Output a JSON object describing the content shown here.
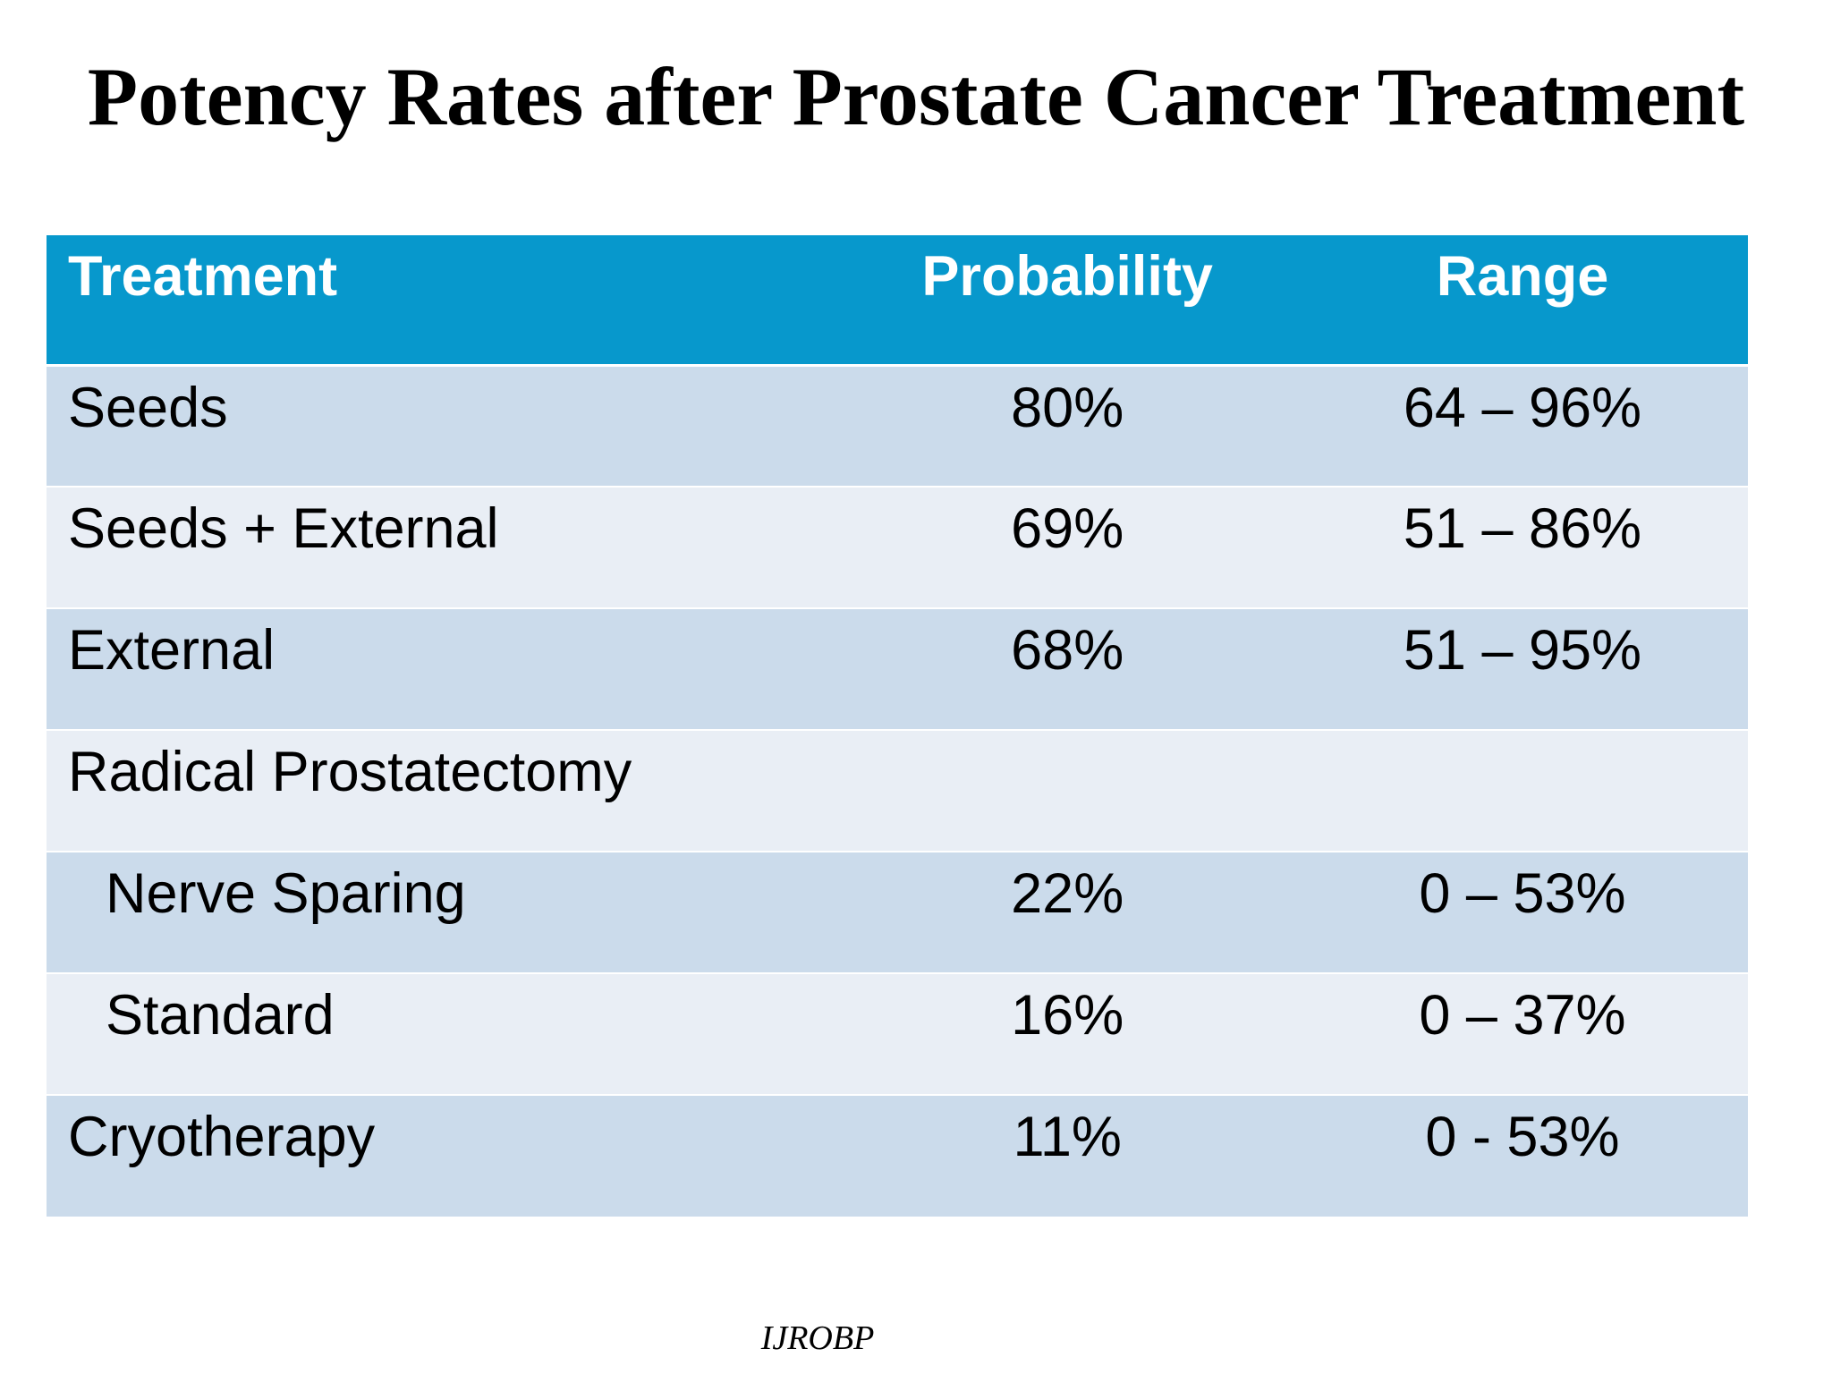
{
  "slide": {
    "title": "Potency Rates after Prostate Cancer Treatment",
    "footer": "IJROBP"
  },
  "table": {
    "columns": [
      "Treatment",
      "Probability",
      "Range"
    ],
    "rows": [
      {
        "treatment": "Seeds",
        "probability": "80%",
        "range": "64 – 96%"
      },
      {
        "treatment": "Seeds + External",
        "probability": "69%",
        "range": "51 – 86%"
      },
      {
        "treatment": "External",
        "probability": "68%",
        "range": "51 – 95%"
      },
      {
        "treatment": "Radical Prostatectomy",
        "probability": "",
        "range": ""
      },
      {
        "treatment": "Nerve Sparing",
        "probability": "22%",
        "range": "0 – 53%"
      },
      {
        "treatment": "Standard",
        "probability": "16%",
        "range": "0 – 37%"
      },
      {
        "treatment": "Cryotherapy",
        "probability": "11%",
        "range": "0 - 53%"
      }
    ],
    "colors": {
      "header_bg": "#0798CC",
      "header_text": "#FFFFFF",
      "row_dark": "#CBDBEB",
      "row_light": "#E9EEF5",
      "body_text": "#000000"
    }
  }
}
